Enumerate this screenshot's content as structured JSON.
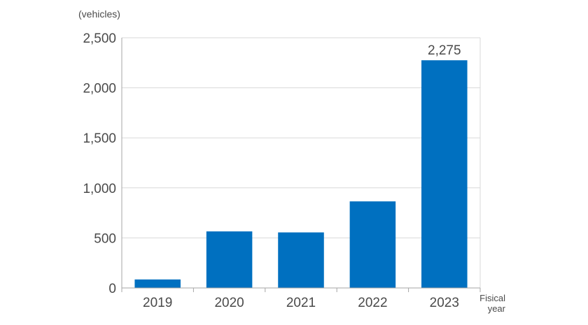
{
  "chart_data": {
    "type": "bar",
    "unit_label": "(vehicles)",
    "xlabel_lines": [
      "Fisical",
      "year"
    ],
    "categories": [
      "2019",
      "2020",
      "2021",
      "2022",
      "2023"
    ],
    "values": [
      85,
      565,
      555,
      865,
      2275
    ],
    "data_labels": [
      "",
      "",
      "",
      "",
      "2,275"
    ],
    "ylim": [
      0,
      2500
    ],
    "yticks": [
      0,
      500,
      1000,
      1500,
      2000,
      2500
    ],
    "ytick_labels": [
      "0",
      "500",
      "1,000",
      "1,500",
      "2,000",
      "2,500"
    ],
    "grid": true,
    "bar_color": "#0070c0",
    "grid_color": "#d9d9d9",
    "axis_color": "#a6a6a6",
    "text_color": "#4a4a4a"
  }
}
